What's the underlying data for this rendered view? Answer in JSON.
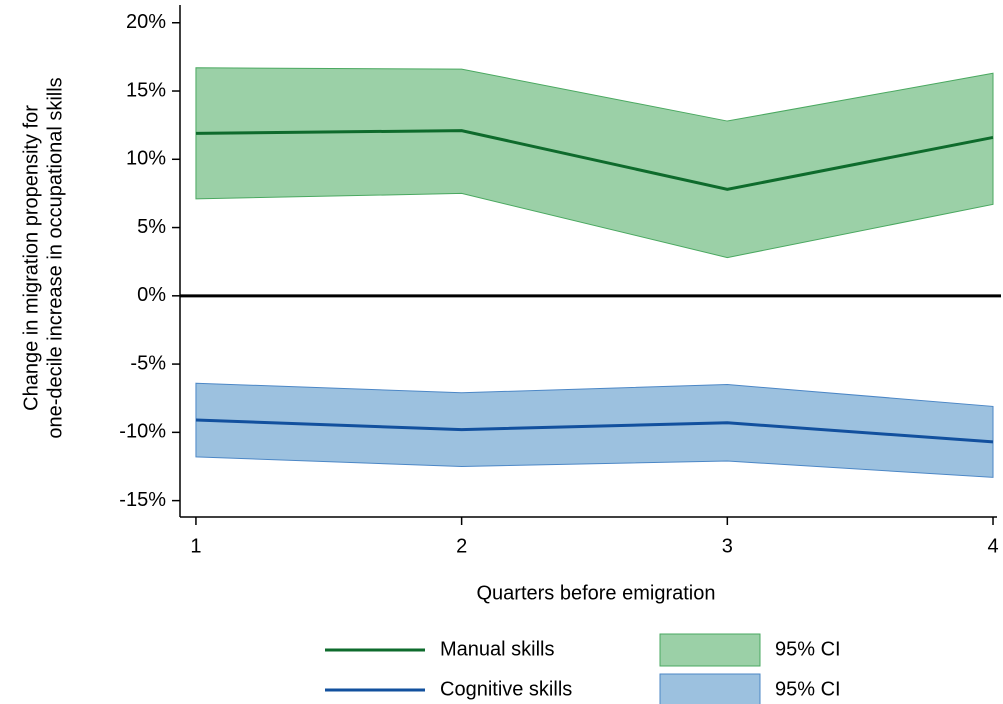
{
  "chart_data": {
    "type": "line-band",
    "x_label": "Quarters before emigration",
    "y_label": [
      "Change in migration propensity for",
      "one-decile increase in occupational skills"
    ],
    "x": [
      1,
      2,
      3,
      4
    ],
    "xlim": [
      0.94,
      4.015
    ],
    "xticks": [
      1,
      2,
      3,
      4
    ],
    "ylim": [
      -16.2,
      21.3
    ],
    "yticks": [
      {
        "value": -15,
        "label": "-15%"
      },
      {
        "value": -10,
        "label": "-10%"
      },
      {
        "value": -5,
        "label": "-5%"
      },
      {
        "value": 0,
        "label": "0%"
      },
      {
        "value": 5,
        "label": "5%"
      },
      {
        "value": 10,
        "label": "10%"
      },
      {
        "value": 15,
        "label": "15%"
      },
      {
        "value": 20,
        "label": "20%"
      }
    ],
    "reference_line": 0,
    "series": [
      {
        "name": "Manual skills",
        "color": "#0e6b2c",
        "values": [
          11.9,
          12.1,
          7.8,
          11.6
        ],
        "band_name": "95% CI",
        "band_color": "#9bd0a7",
        "band_edge": "#4aa860",
        "lower": [
          7.1,
          7.5,
          2.8,
          6.7
        ],
        "upper": [
          16.7,
          16.6,
          12.8,
          16.3
        ]
      },
      {
        "name": "Cognitive skills",
        "color": "#12509e",
        "values": [
          -9.1,
          -9.8,
          -9.3,
          -10.7
        ],
        "band_name": "95% CI",
        "band_color": "#9cc1df",
        "band_edge": "#4c87c6",
        "lower": [
          -11.8,
          -12.5,
          -12.1,
          -13.3
        ],
        "upper": [
          -6.4,
          -7.1,
          -6.5,
          -8.1
        ]
      }
    ]
  }
}
